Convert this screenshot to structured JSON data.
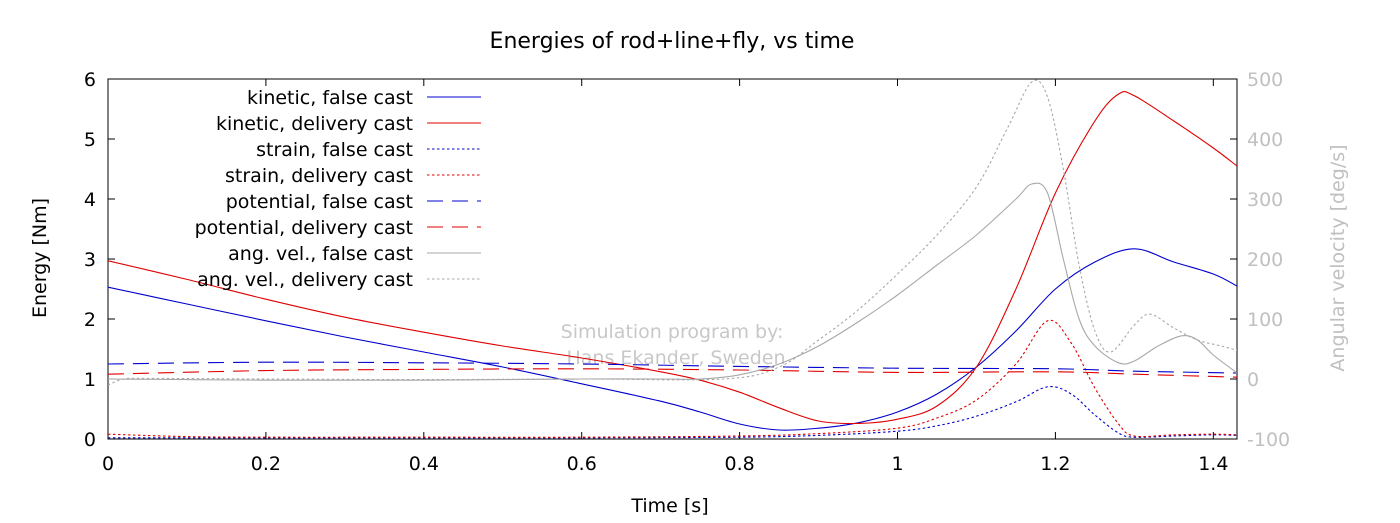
{
  "chart_data": {
    "type": "line",
    "title": "Energies of rod+line+fly, vs time",
    "xlabel": "Time [s]",
    "ylabel": "Energy [Nm]",
    "y2label": "Angular velocity [deg/s]",
    "xlim": [
      0,
      1.43
    ],
    "ylim": [
      0,
      6
    ],
    "y2lim": [
      -100,
      500
    ],
    "xticks": [
      0,
      0.2,
      0.4,
      0.6,
      0.8,
      1,
      1.2,
      1.4
    ],
    "xtick_labels": [
      "0",
      "0.2",
      "0.4",
      "0.6",
      "0.8",
      "1",
      "1.2",
      "1.4"
    ],
    "yticks": [
      0,
      1,
      2,
      3,
      4,
      5,
      6
    ],
    "ytick_labels": [
      "0",
      "1",
      "2",
      "3",
      "4",
      "5",
      "6"
    ],
    "y2ticks": [
      -100,
      0,
      100,
      200,
      300,
      400,
      500
    ],
    "y2tick_labels": [
      "-100",
      "0",
      "100",
      "200",
      "300",
      "400",
      "500"
    ],
    "grid": false,
    "legend_position": "top-left",
    "annotation": {
      "lines": [
        "Simulation program by:",
        "Hans Ekander, Sweden"
      ],
      "position_data": [
        0.58,
        1.41
      ]
    },
    "series": [
      {
        "name": "kinetic, false cast",
        "axis": "y1",
        "color": "#0000cc",
        "dash": "solid",
        "points": [
          [
            0,
            2.53
          ],
          [
            0.1,
            2.25
          ],
          [
            0.2,
            1.97
          ],
          [
            0.3,
            1.7
          ],
          [
            0.4,
            1.45
          ],
          [
            0.5,
            1.2
          ],
          [
            0.6,
            0.92
          ],
          [
            0.7,
            0.63
          ],
          [
            0.75,
            0.45
          ],
          [
            0.8,
            0.25
          ],
          [
            0.85,
            0.15
          ],
          [
            0.9,
            0.18
          ],
          [
            0.95,
            0.27
          ],
          [
            1.0,
            0.45
          ],
          [
            1.05,
            0.75
          ],
          [
            1.1,
            1.2
          ],
          [
            1.15,
            1.8
          ],
          [
            1.2,
            2.5
          ],
          [
            1.25,
            2.95
          ],
          [
            1.3,
            3.17
          ],
          [
            1.35,
            2.95
          ],
          [
            1.4,
            2.75
          ],
          [
            1.43,
            2.55
          ]
        ]
      },
      {
        "name": "kinetic, delivery cast",
        "axis": "y1",
        "color": "#e00000",
        "dash": "solid",
        "points": [
          [
            0,
            2.97
          ],
          [
            0.1,
            2.66
          ],
          [
            0.2,
            2.33
          ],
          [
            0.3,
            2.03
          ],
          [
            0.4,
            1.78
          ],
          [
            0.5,
            1.55
          ],
          [
            0.6,
            1.35
          ],
          [
            0.7,
            1.12
          ],
          [
            0.75,
            0.98
          ],
          [
            0.8,
            0.78
          ],
          [
            0.85,
            0.52
          ],
          [
            0.9,
            0.3
          ],
          [
            0.95,
            0.26
          ],
          [
            1.0,
            0.33
          ],
          [
            1.05,
            0.55
          ],
          [
            1.1,
            1.2
          ],
          [
            1.15,
            2.5
          ],
          [
            1.2,
            4.1
          ],
          [
            1.25,
            5.3
          ],
          [
            1.28,
            5.75
          ],
          [
            1.3,
            5.72
          ],
          [
            1.35,
            5.3
          ],
          [
            1.4,
            4.85
          ],
          [
            1.43,
            4.55
          ]
        ]
      },
      {
        "name": "strain, false cast",
        "axis": "y1",
        "color": "#0000cc",
        "dash": "dot",
        "points": [
          [
            0,
            0.02
          ],
          [
            0.2,
            0.02
          ],
          [
            0.4,
            0.02
          ],
          [
            0.6,
            0.02
          ],
          [
            0.8,
            0.03
          ],
          [
            0.9,
            0.06
          ],
          [
            1.0,
            0.13
          ],
          [
            1.05,
            0.22
          ],
          [
            1.1,
            0.38
          ],
          [
            1.15,
            0.62
          ],
          [
            1.19,
            0.87
          ],
          [
            1.22,
            0.75
          ],
          [
            1.25,
            0.4
          ],
          [
            1.28,
            0.1
          ],
          [
            1.3,
            0.03
          ],
          [
            1.35,
            0.05
          ],
          [
            1.4,
            0.07
          ],
          [
            1.43,
            0.06
          ]
        ]
      },
      {
        "name": "strain, delivery cast",
        "axis": "y1",
        "color": "#e00000",
        "dash": "dot",
        "points": [
          [
            0,
            0.08
          ],
          [
            0.1,
            0.04
          ],
          [
            0.2,
            0.03
          ],
          [
            0.4,
            0.03
          ],
          [
            0.6,
            0.03
          ],
          [
            0.8,
            0.05
          ],
          [
            0.9,
            0.09
          ],
          [
            1.0,
            0.18
          ],
          [
            1.05,
            0.35
          ],
          [
            1.1,
            0.65
          ],
          [
            1.15,
            1.25
          ],
          [
            1.19,
            1.97
          ],
          [
            1.22,
            1.6
          ],
          [
            1.25,
            0.85
          ],
          [
            1.28,
            0.25
          ],
          [
            1.3,
            0.05
          ],
          [
            1.35,
            0.07
          ],
          [
            1.4,
            0.08
          ],
          [
            1.43,
            0.07
          ]
        ]
      },
      {
        "name": "potential, false cast",
        "axis": "y1",
        "color": "#0000cc",
        "dash": "dash",
        "points": [
          [
            0,
            1.25
          ],
          [
            0.2,
            1.28
          ],
          [
            0.4,
            1.27
          ],
          [
            0.6,
            1.25
          ],
          [
            0.8,
            1.21
          ],
          [
            1.0,
            1.18
          ],
          [
            1.2,
            1.17
          ],
          [
            1.3,
            1.13
          ],
          [
            1.43,
            1.1
          ]
        ]
      },
      {
        "name": "potential, delivery cast",
        "axis": "y1",
        "color": "#e00000",
        "dash": "dash",
        "points": [
          [
            0,
            1.08
          ],
          [
            0.2,
            1.14
          ],
          [
            0.4,
            1.16
          ],
          [
            0.6,
            1.17
          ],
          [
            0.8,
            1.15
          ],
          [
            1.0,
            1.11
          ],
          [
            1.2,
            1.12
          ],
          [
            1.3,
            1.08
          ],
          [
            1.43,
            1.03
          ]
        ]
      },
      {
        "name": "ang. vel., false cast",
        "axis": "y2",
        "color": "#a8a8a8",
        "dash": "solid",
        "points": [
          [
            0,
            0
          ],
          [
            0.1,
            -1
          ],
          [
            0.2,
            -2
          ],
          [
            0.3,
            -2
          ],
          [
            0.4,
            -2
          ],
          [
            0.5,
            -1
          ],
          [
            0.6,
            0
          ],
          [
            0.7,
            0
          ],
          [
            0.75,
            0
          ],
          [
            0.8,
            7
          ],
          [
            0.85,
            25
          ],
          [
            0.9,
            55
          ],
          [
            0.95,
            95
          ],
          [
            1.0,
            140
          ],
          [
            1.05,
            190
          ],
          [
            1.1,
            240
          ],
          [
            1.15,
            300
          ],
          [
            1.17,
            325
          ],
          [
            1.19,
            310
          ],
          [
            1.21,
            200
          ],
          [
            1.23,
            100
          ],
          [
            1.25,
            55
          ],
          [
            1.28,
            27
          ],
          [
            1.3,
            30
          ],
          [
            1.33,
            55
          ],
          [
            1.36,
            72
          ],
          [
            1.38,
            65
          ],
          [
            1.4,
            40
          ],
          [
            1.43,
            10
          ]
        ]
      },
      {
        "name": "ang. vel., delivery cast",
        "axis": "y2",
        "color": "#a8a8a8",
        "dash": "dot",
        "points": [
          [
            0,
            -10
          ],
          [
            0.02,
            0
          ],
          [
            0.05,
            1
          ],
          [
            0.2,
            0
          ],
          [
            0.4,
            -1
          ],
          [
            0.6,
            0
          ],
          [
            0.78,
            0
          ],
          [
            0.85,
            20
          ],
          [
            0.9,
            65
          ],
          [
            0.95,
            115
          ],
          [
            1.0,
            175
          ],
          [
            1.05,
            240
          ],
          [
            1.1,
            320
          ],
          [
            1.14,
            420
          ],
          [
            1.17,
            495
          ],
          [
            1.19,
            470
          ],
          [
            1.21,
            350
          ],
          [
            1.23,
            190
          ],
          [
            1.25,
            80
          ],
          [
            1.27,
            45
          ],
          [
            1.3,
            90
          ],
          [
            1.32,
            108
          ],
          [
            1.35,
            85
          ],
          [
            1.38,
            65
          ],
          [
            1.41,
            55
          ],
          [
            1.43,
            48
          ]
        ]
      }
    ]
  }
}
